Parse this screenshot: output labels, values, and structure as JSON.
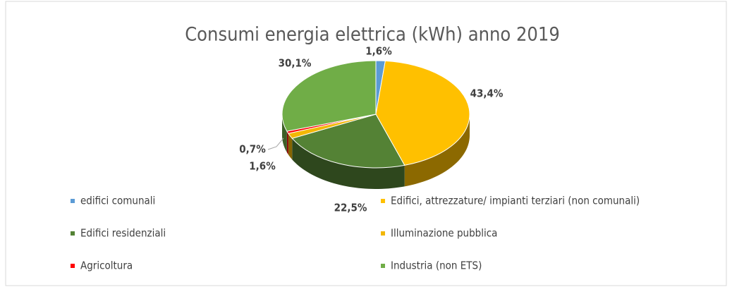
{
  "chart_data": {
    "type": "pie",
    "title": "Consumi energia elettrica (kWh) anno 2019",
    "categories": [
      "edifici comunali",
      "Edifici, attrezzature/ impianti terziari (non comunali)",
      "Edifici residenziali",
      "Illuminazione pubblica",
      "Agricoltura",
      "Industria (non ETS)"
    ],
    "values": [
      1.6,
      43.4,
      22.5,
      1.6,
      0.7,
      30.1
    ],
    "value_labels": [
      "1,6%",
      "43,4%",
      "22,5%",
      "1,6%",
      "0,7%",
      "30,1%"
    ],
    "colors": [
      "#5b9bd5",
      "#ffc000",
      "#548235",
      "#f2b705",
      "#ff0000",
      "#70ad47"
    ],
    "legend": "bottom"
  }
}
